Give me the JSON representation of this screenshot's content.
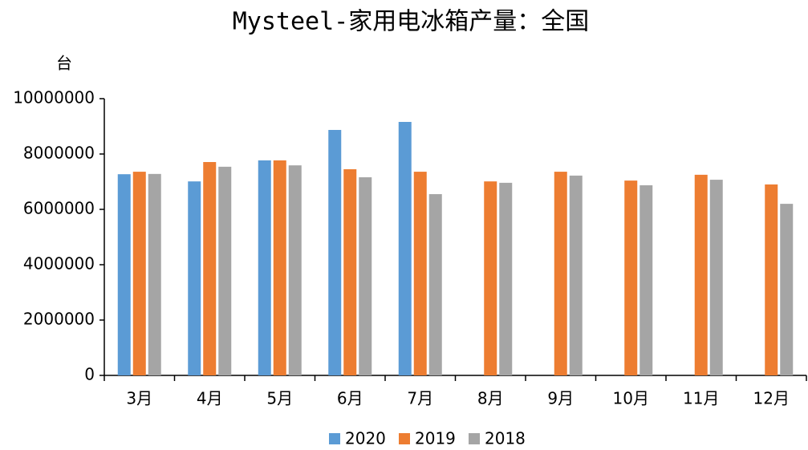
{
  "chart_data": {
    "type": "bar",
    "title": "Mysteel-家用电冰箱产量：全国",
    "y_label": "台",
    "categories": [
      "3月",
      "4月",
      "5月",
      "6月",
      "7月",
      "8月",
      "9月",
      "10月",
      "11月",
      "12月"
    ],
    "series": [
      {
        "name": "2020",
        "color": "#5b9bd5",
        "values": [
          7270000,
          7010000,
          7770000,
          8870000,
          9160000,
          null,
          null,
          null,
          null,
          null
        ]
      },
      {
        "name": "2019",
        "color": "#ed7d31",
        "values": [
          7360000,
          7710000,
          7770000,
          7450000,
          7360000,
          7010000,
          7360000,
          7040000,
          7250000,
          6900000
        ]
      },
      {
        "name": "2018",
        "color": "#a5a5a5",
        "values": [
          7280000,
          7540000,
          7590000,
          7160000,
          6550000,
          6960000,
          7220000,
          6870000,
          7070000,
          6200000
        ]
      }
    ],
    "ylim": [
      0,
      10000000
    ],
    "yticks": [
      0,
      2000000,
      4000000,
      6000000,
      8000000,
      10000000
    ],
    "grid": false,
    "legend": "bottom"
  }
}
